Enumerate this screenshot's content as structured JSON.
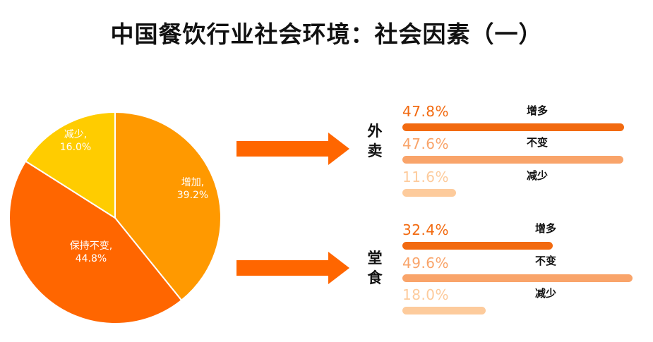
{
  "title": "中国餐饮行业社会环境：社会因素（一）",
  "colors": {
    "increase": "#FF9900",
    "same": "#FF6600",
    "decrease": "#FFCC00",
    "bar_increase": "#F26A10",
    "bar_same": "#F9A46A",
    "bar_decrease": "#FDCB9C",
    "arrow": "#FF6600"
  },
  "chart_data": [
    {
      "type": "pie",
      "slices": [
        {
          "label": "增加,",
          "value_label": "39.2%",
          "value": 39.2
        },
        {
          "label": "保持不变,",
          "value_label": "44.8%",
          "value": 44.8
        },
        {
          "label": "减少,",
          "value_label": "16.0%",
          "value": 16.0
        }
      ]
    },
    {
      "type": "bar",
      "group": "外卖",
      "categories": [
        "增多",
        "不变",
        "减少"
      ],
      "values": [
        47.8,
        47.6,
        11.6
      ],
      "value_labels": [
        "47.8%",
        "47.6%",
        "11.6%"
      ]
    },
    {
      "type": "bar",
      "group": "堂食",
      "categories": [
        "增多",
        "不变",
        "减少"
      ],
      "values": [
        32.4,
        49.6,
        18.0
      ],
      "value_labels": [
        "32.4%",
        "49.6%",
        "18.0%"
      ]
    }
  ]
}
